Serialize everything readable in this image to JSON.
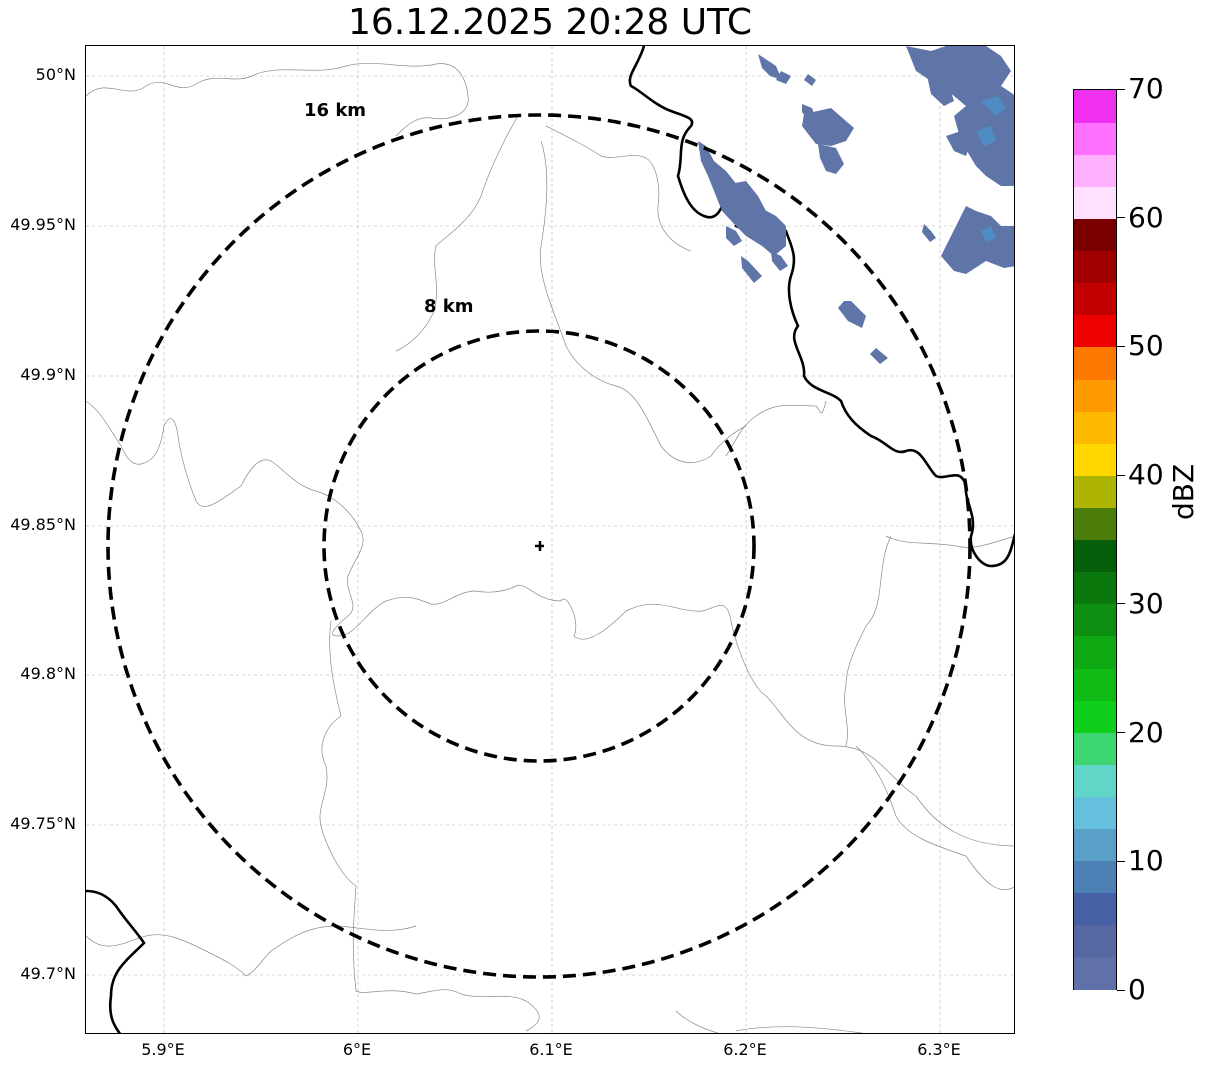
{
  "title": "16.12.2025 20:28 UTC",
  "latitude_ticks": [
    "50°N",
    "49.95°N",
    "49.9°N",
    "49.85°N",
    "49.8°N",
    "49.75°N",
    "49.7°N"
  ],
  "longitude_ticks": [
    "5.9°E",
    "6°E",
    "6.1°E",
    "6.2°E",
    "6.3°E"
  ],
  "range_rings": [
    {
      "label": "16 km",
      "radius_km": 16
    },
    {
      "label": "8 km",
      "radius_km": 8
    }
  ],
  "radar_site_marker": "plus-marker",
  "colorbar": {
    "unit": "dBZ",
    "ticks": [
      "0",
      "10",
      "20",
      "30",
      "40",
      "50",
      "60",
      "70"
    ],
    "min": 0,
    "max": 70,
    "colors": [
      "#6070a8",
      "#5568a2",
      "#4660a6",
      "#4c7fb4",
      "#58a0c8",
      "#64c0dc",
      "#60d6c8",
      "#3dd673",
      "#10cf1a",
      "#0fba14",
      "#0ea812",
      "#0c8f10",
      "#0a780d",
      "#065e0b",
      "#4c7c0a",
      "#aeb404",
      "#ffd800",
      "#ffba00",
      "#ff9a00",
      "#ff7800",
      "#ec0000",
      "#c20000",
      "#a00000",
      "#7a0000",
      "#ffe0ff",
      "#ffb0ff",
      "#ff70ff",
      "#f030f0"
    ]
  },
  "colors": {
    "rings": "#000000",
    "country_border": "#000000",
    "admin_boundaries": "#808080",
    "gridlines": "#b0b0b0",
    "precipitation": "#5f75a8"
  }
}
